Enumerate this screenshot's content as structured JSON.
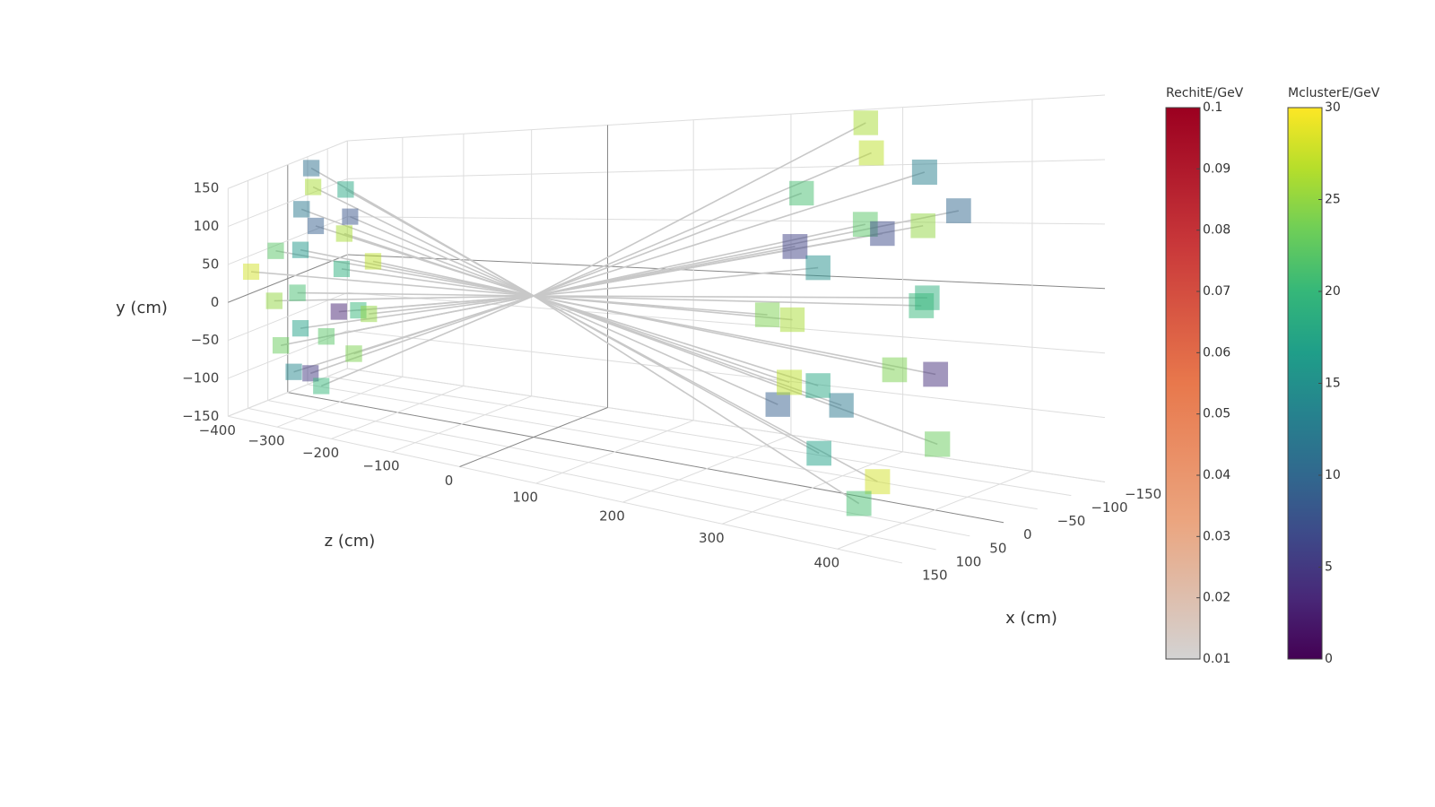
{
  "chart_data": {
    "type": "scatter3d",
    "xlabel": "x (cm)",
    "ylabel": "y (cm)",
    "zlabel": "z (cm)",
    "xlim": [
      -150,
      150
    ],
    "xticks": [
      {
        "value": -150,
        "label": "−150"
      },
      {
        "value": -100,
        "label": "−100"
      },
      {
        "value": -50,
        "label": "−50"
      },
      0,
      50,
      100,
      150
    ],
    "ylim": [
      -150,
      150
    ],
    "yticks": [
      {
        "value": -150,
        "label": "−150"
      },
      {
        "value": -100,
        "label": "−100"
      },
      {
        "value": -50,
        "label": "−50"
      },
      0,
      50,
      100,
      150
    ],
    "zlim": [
      -400,
      450
    ],
    "zticks": [
      {
        "value": -400,
        "label": "−400"
      },
      {
        "value": -300,
        "label": "−300"
      },
      {
        "value": -200,
        "label": "−200"
      },
      {
        "value": -100,
        "label": "−100"
      },
      0,
      100,
      200,
      300,
      400
    ],
    "grid": true,
    "colorbars": [
      {
        "title": "RechitE/GeV",
        "lim": [
          0.01,
          0.1
        ],
        "ticks": [
          0.01,
          0.02,
          0.03,
          0.04,
          0.05,
          0.06,
          0.07,
          0.08,
          0.09,
          0.1
        ],
        "colorscale": [
          "#d3d3d3",
          "#eba57f",
          "#e8784c",
          "#c9383a",
          "#9b0020"
        ]
      },
      {
        "title": "MclusterE/GeV",
        "lim": [
          0,
          30
        ],
        "ticks": [
          0,
          5,
          10,
          15,
          20,
          25,
          30
        ],
        "colorscale": [
          "#440154",
          "#482878",
          "#3e4989",
          "#31688e",
          "#26828e",
          "#1f9e89",
          "#35b779",
          "#6ece58",
          "#b5de2b",
          "#fde725"
        ]
      }
    ],
    "track_color": "#c8c8c8",
    "points": {
      "colorbar": 1,
      "x": [
        120,
        104,
        60,
        0,
        -60,
        -104,
        -120,
        -104,
        -60,
        0,
        60,
        104,
        70,
        50,
        0,
        -50,
        -70,
        -50,
        0,
        50,
        140,
        -130,
        30,
        -20,
        130,
        113,
        65,
        0,
        -65,
        -113,
        -130,
        -113,
        -65,
        0,
        65,
        113,
        80,
        57,
        0,
        -57,
        -80,
        -57,
        0,
        57,
        150,
        -150,
        -30,
        20
      ],
      "y": [
        0,
        60,
        104,
        120,
        104,
        60,
        0,
        -60,
        -104,
        -120,
        -104,
        -60,
        0,
        50,
        70,
        50,
        0,
        -50,
        -70,
        -50,
        40,
        -70,
        150,
        -140,
        30,
        85,
        120,
        140,
        110,
        55,
        -10,
        -70,
        -115,
        -135,
        -100,
        -50,
        15,
        55,
        80,
        60,
        -5,
        -55,
        -75,
        -45,
        -20,
        60,
        160,
        -150
      ],
      "z": [
        -330,
        -340,
        -325,
        -350,
        -335,
        -360,
        -330,
        -345,
        -320,
        -355,
        -340,
        -330,
        -325,
        -335,
        -345,
        -330,
        -350,
        -340,
        -325,
        -335,
        -360,
        -345,
        -330,
        -350,
        330,
        345,
        325,
        350,
        360,
        335,
        330,
        345,
        370,
        355,
        340,
        330,
        325,
        335,
        345,
        330,
        350,
        340,
        325,
        335,
        360,
        345,
        330,
        350
      ],
      "energy": [
        25,
        22,
        12,
        26,
        18,
        8,
        27,
        20,
        24,
        5,
        14,
        23,
        21,
        16,
        9,
        26,
        19,
        3,
        22,
        17,
        28,
        25,
        11,
        20,
        24,
        6,
        21,
        27,
        13,
        25,
        19,
        4,
        23,
        28,
        17,
        9,
        26,
        15,
        22,
        7,
        20,
        24,
        12,
        18,
        27,
        10,
        26,
        21
      ]
    }
  }
}
